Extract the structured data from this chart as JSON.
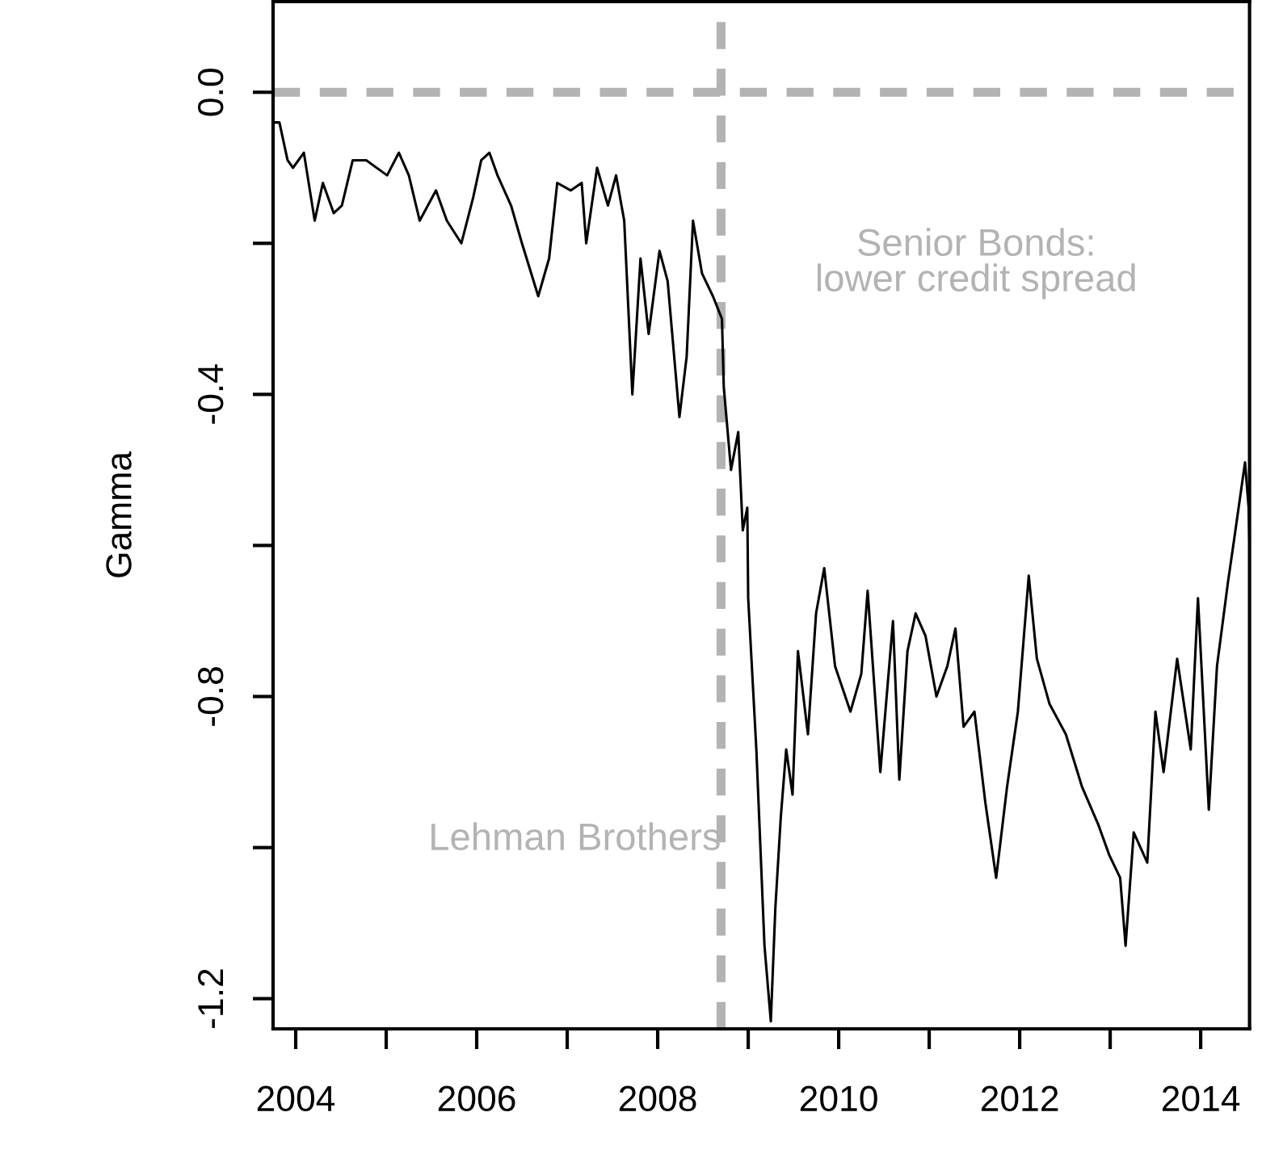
{
  "chart_data": {
    "type": "line",
    "ylabel": "Gamma",
    "x": [
      2003.76,
      2003.82,
      2003.91,
      2003.97,
      2004.09,
      2004.21,
      2004.3,
      2004.42,
      2004.51,
      2004.63,
      2004.78,
      2005.01,
      2005.14,
      2005.25,
      2005.37,
      2005.55,
      2005.67,
      2005.83,
      2005.96,
      2006.05,
      2006.14,
      2006.23,
      2006.38,
      2006.5,
      2006.68,
      2006.8,
      2006.89,
      2007.04,
      2007.16,
      2007.21,
      2007.33,
      2007.45,
      2007.54,
      2007.63,
      2007.72,
      2007.81,
      2007.9,
      2008.02,
      2008.11,
      2008.24,
      2008.32,
      2008.39,
      2008.49,
      2008.61,
      2008.71,
      2008.73,
      2008.81,
      2008.89,
      2008.94,
      2008.99,
      2009.0,
      2009.09,
      2009.18,
      2009.25,
      2009.3,
      2009.36,
      2009.42,
      2009.49,
      2009.55,
      2009.66,
      2009.75,
      2009.84,
      2009.96,
      2010.13,
      2010.25,
      2010.32,
      2010.46,
      2010.6,
      2010.67,
      2010.76,
      2010.85,
      2010.96,
      2011.08,
      2011.2,
      2011.29,
      2011.38,
      2011.5,
      2011.62,
      2011.74,
      2011.86,
      2011.98,
      2012.1,
      2012.19,
      2012.33,
      2012.51,
      2012.69,
      2012.87,
      2012.99,
      2013.11,
      2013.17,
      2013.26,
      2013.41,
      2013.5,
      2013.59,
      2013.74,
      2013.89,
      2013.97,
      2014.09,
      2014.18,
      2014.3,
      2014.36,
      2014.49,
      2014.53,
      2014.54
    ],
    "series": [
      {
        "color": "#000000",
        "values": [
          -0.04,
          -0.04,
          -0.09,
          -0.1,
          -0.08,
          -0.17,
          -0.12,
          -0.16,
          -0.15,
          -0.09,
          -0.09,
          -0.11,
          -0.08,
          -0.11,
          -0.17,
          -0.13,
          -0.17,
          -0.2,
          -0.14,
          -0.09,
          -0.08,
          -0.11,
          -0.15,
          -0.2,
          -0.27,
          -0.22,
          -0.12,
          -0.13,
          -0.12,
          -0.2,
          -0.1,
          -0.15,
          -0.11,
          -0.17,
          -0.4,
          -0.22,
          -0.32,
          -0.21,
          -0.25,
          -0.43,
          -0.35,
          -0.17,
          -0.24,
          -0.27,
          -0.3,
          -0.39,
          -0.5,
          -0.45,
          -0.58,
          -0.55,
          -0.67,
          -0.87,
          -1.13,
          -1.23,
          -1.08,
          -0.96,
          -0.87,
          -0.93,
          -0.74,
          -0.85,
          -0.69,
          -0.63,
          -0.76,
          -0.82,
          -0.77,
          -0.66,
          -0.9,
          -0.7,
          -0.91,
          -0.74,
          -0.69,
          -0.72,
          -0.8,
          -0.76,
          -0.71,
          -0.84,
          -0.82,
          -0.94,
          -1.04,
          -0.92,
          -0.82,
          -0.64,
          -0.75,
          -0.81,
          -0.85,
          -0.92,
          -0.97,
          -1.01,
          -1.04,
          -1.13,
          -0.98,
          -1.02,
          -0.82,
          -0.9,
          -0.75,
          -0.87,
          -0.67,
          -0.95,
          -0.76,
          -0.65,
          -0.6,
          -0.49,
          -0.55,
          -0.6
        ]
      }
    ],
    "xlim": [
      2003.75,
      2014.54
    ],
    "xticks": [
      2004,
      {
        "value": 2005,
        "label": null
      },
      2006,
      {
        "value": 2007,
        "label": null
      },
      2008,
      {
        "value": 2009,
        "label": null
      },
      2010,
      {
        "value": 2011,
        "label": null
      },
      2012,
      {
        "value": 2013,
        "label": null
      },
      2014
    ],
    "ylim": [
      -1.24,
      0.12
    ],
    "yticks": [
      {
        "value": 0,
        "label": "0.0"
      },
      {
        "value": -0.2,
        "label": null
      },
      -0.4,
      {
        "value": -0.6,
        "label": null
      },
      -0.8,
      {
        "value": -1.0,
        "label": null
      },
      -1.2
    ],
    "annotations": [
      "Senior Bonds:\nlower credit spread"
    ],
    "ref_lines": [
      {
        "axis": "y",
        "value": 0,
        "color": "#b3b3b3",
        "line_style": "dashed"
      },
      {
        "axis": "x",
        "value": 2008.7,
        "label": "Lehman Brothers",
        "color": "#b3b3b3",
        "line_style": "dashed"
      }
    ],
    "grid": false,
    "legend": false
  }
}
